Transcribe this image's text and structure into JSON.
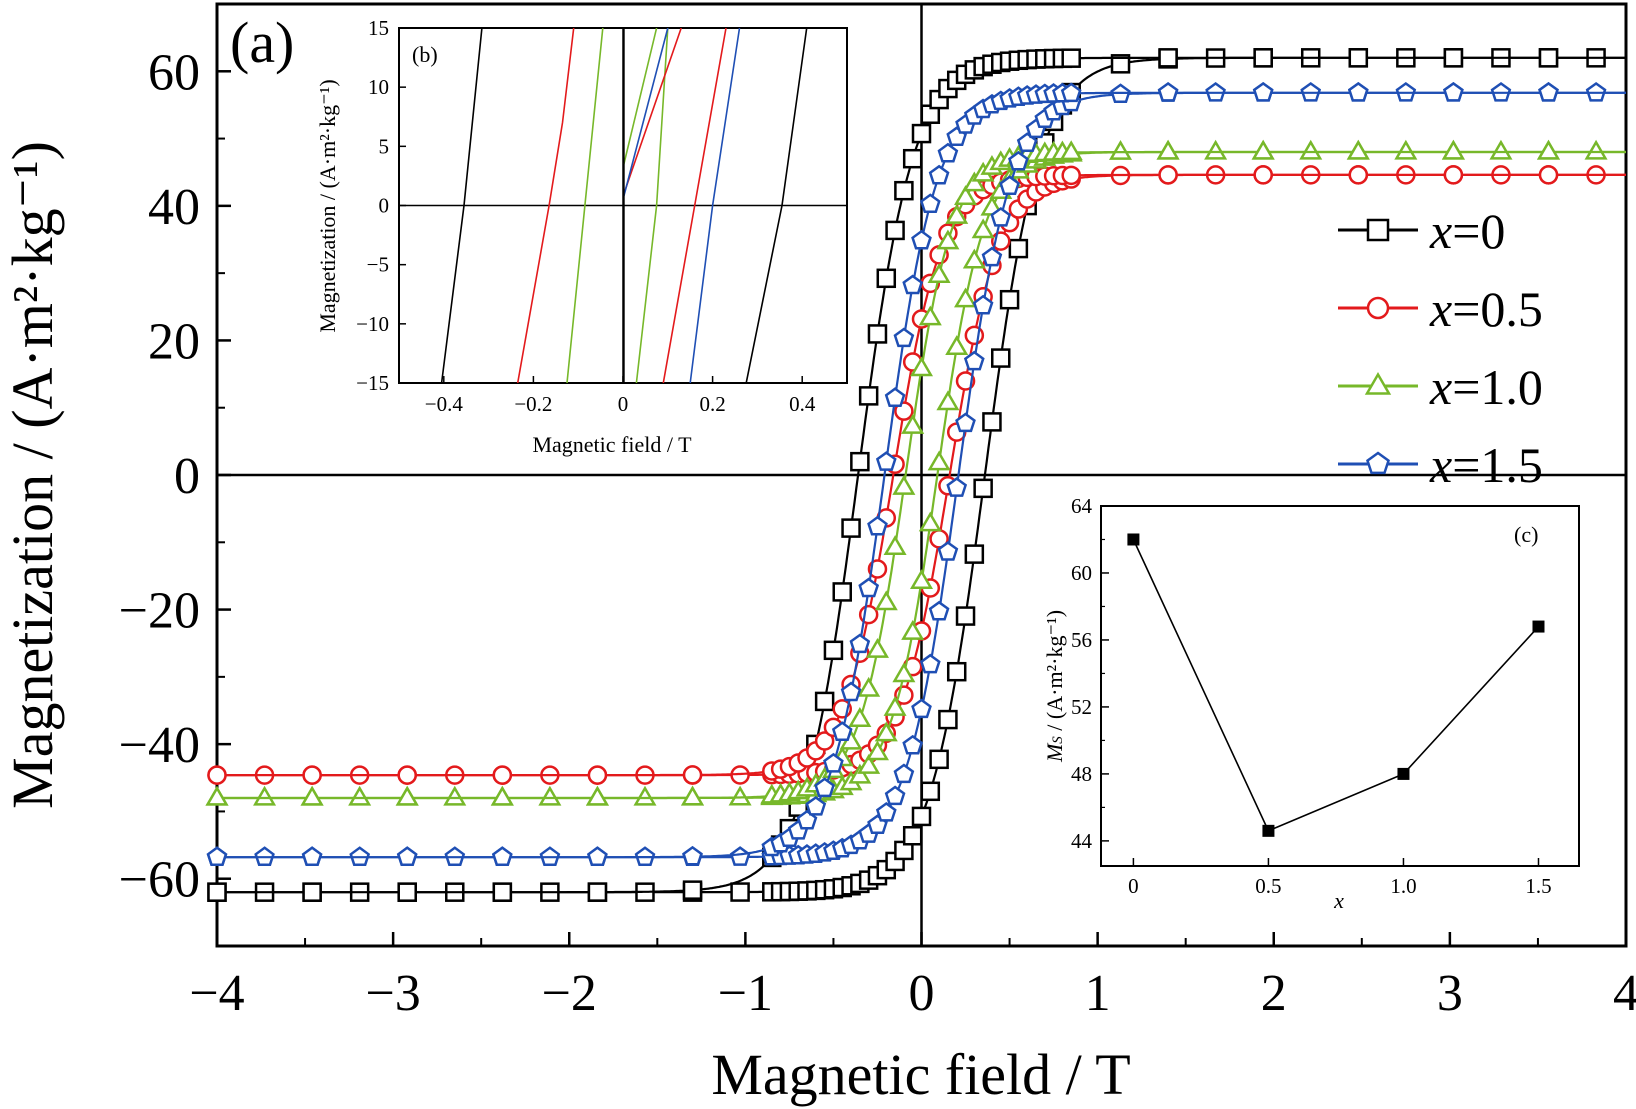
{
  "figure": {
    "panel_a": "(a)",
    "panel_b": "(b)",
    "panel_c": "(c)"
  },
  "chart_data": [
    {
      "id": "a",
      "type": "scatter",
      "xlabel": "Magnetic field / T",
      "ylabel": "Magnetization / (A·m²·kg⁻¹)",
      "xlim": [
        -4,
        4
      ],
      "ylim": [
        -70,
        70
      ],
      "xticks": [
        -4,
        -3,
        -2,
        -1,
        0,
        1,
        2,
        3,
        4
      ],
      "yticks": [
        -60,
        -40,
        -20,
        0,
        20,
        40,
        60
      ],
      "xtick_labels": [
        "−4",
        "−3",
        "−2",
        "−1",
        "0",
        "1",
        "2",
        "3",
        "4"
      ],
      "ytick_labels": [
        "−60",
        "−40",
        "−20",
        "0",
        "20",
        "40",
        "60"
      ],
      "legend_position": "right",
      "series": [
        {
          "name": "x=0",
          "marker": "square",
          "color": "#000000",
          "Ms": 62.0,
          "Hc": 0.36,
          "k": 3.2
        },
        {
          "name": "x=0.5",
          "marker": "circle",
          "color": "#e31a1c",
          "Ms": 44.6,
          "Hc": 0.16,
          "k": 3.6
        },
        {
          "name": "x=1.0",
          "marker": "triangle",
          "color": "#77b82a",
          "Ms": 48.0,
          "Hc": 0.09,
          "k": 3.8
        },
        {
          "name": "x=1.5",
          "marker": "pentagon",
          "color": "#1f4fb4",
          "Ms": 56.8,
          "Hc": 0.21,
          "k": 3.4
        }
      ]
    },
    {
      "id": "b",
      "type": "line",
      "xlabel": "Magnetic field / T",
      "ylabel": "Magnetization / (A·m²·kg⁻¹)",
      "xlim": [
        -0.5,
        0.5
      ],
      "ylim": [
        -15,
        15
      ],
      "xticks": [
        -0.4,
        -0.2,
        0,
        0.2,
        0.4
      ],
      "yticks": [
        -15,
        -10,
        -5,
        0,
        5,
        10,
        15
      ],
      "xtick_labels": [
        "−0.4",
        "−0.2",
        "0",
        "0.2",
        "0.4"
      ],
      "ytick_labels": [
        "−15",
        "−10",
        "−5",
        "0",
        "5",
        "10",
        "15"
      ],
      "series": [
        {
          "name": "x=0",
          "color": "#000000",
          "lines": [
            [
              [
                -0.405,
                -15
              ],
              [
                -0.355,
                0
              ],
              [
                -0.315,
                15
              ]
            ],
            [
              [
                0.275,
                -15
              ],
              [
                0.355,
                0
              ],
              [
                0.41,
                15
              ]
            ]
          ]
        },
        {
          "name": "x=0.5",
          "color": "#e31a1c",
          "lines": [
            [
              [
                -0.235,
                -15
              ],
              [
                -0.165,
                0
              ],
              [
                -0.135,
                7
              ],
              [
                -0.11,
                15
              ]
            ],
            [
              [
                0.09,
                -15
              ],
              [
                0.16,
                0
              ],
              [
                0.23,
                15
              ]
            ]
          ]
        },
        {
          "name": "x=1.0",
          "color": "#77b82a",
          "lines": [
            [
              [
                -0.125,
                -15
              ],
              [
                -0.085,
                0
              ],
              [
                -0.045,
                15
              ]
            ],
            [
              [
                0.03,
                -15
              ],
              [
                0.075,
                0
              ],
              [
                0.1,
                15
              ]
            ]
          ]
        },
        {
          "name": "x=1.5",
          "color": "#1f4fb4",
          "lines": [
            [
              [
                0.15,
                -15
              ],
              [
                0.2,
                0
              ],
              [
                0.26,
                15
              ]
            ]
          ]
        },
        {
          "name": "x=0.5",
          "color": "#e31a1c",
          "lines": [
            [
              [
                0.002,
                1
              ],
              [
                0.13,
                15
              ]
            ]
          ]
        },
        {
          "name": "x=1.0",
          "color": "#77b82a",
          "lines": [
            [
              [
                0.002,
                3.5
              ],
              [
                0.075,
                15
              ]
            ]
          ]
        },
        {
          "name": "x=1.5",
          "color": "#1f4fb4",
          "lines": [
            [
              [
                0.002,
                0.8
              ],
              [
                0.1,
                15
              ]
            ]
          ]
        },
        {
          "name": "x=0",
          "color": "#000000",
          "lines": [
            [
              [
                0.002,
                -15
              ],
              [
                0.002,
                15
              ]
            ]
          ]
        }
      ]
    },
    {
      "id": "c",
      "type": "line",
      "xlabel": "x",
      "ylabel": "Ms / (A·m²·kg⁻¹)",
      "ylabel_main": "M",
      "ylabel_sub": "S",
      "ylabel_unit": " / (A·m²·kg⁻¹)",
      "xlim": [
        -0.12,
        1.65
      ],
      "ylim": [
        42.5,
        64
      ],
      "xticks": [
        0,
        0.5,
        1.0,
        1.5
      ],
      "yticks": [
        44,
        48,
        52,
        56,
        60,
        64
      ],
      "xtick_labels": [
        "0",
        "0.5",
        "1.0",
        "1.5"
      ],
      "ytick_labels": [
        "44",
        "48",
        "52",
        "56",
        "60",
        "64"
      ],
      "x": [
        0,
        0.5,
        1.0,
        1.5
      ],
      "values": [
        62.0,
        44.6,
        48.0,
        56.8
      ]
    }
  ]
}
